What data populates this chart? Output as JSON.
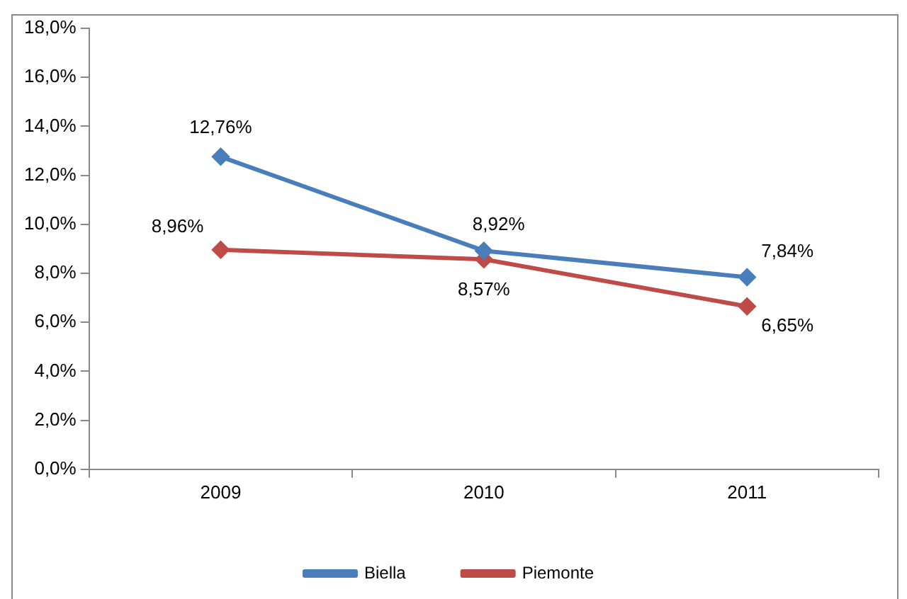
{
  "chart_data": {
    "type": "line",
    "categories": [
      "2009",
      "2010",
      "2011"
    ],
    "series": [
      {
        "name": "Biella",
        "color": "#4a7ebb",
        "values": [
          12.76,
          8.92,
          7.84
        ],
        "value_labels": [
          "12,76%",
          "8,92%",
          "7,84%"
        ]
      },
      {
        "name": "Piemonte",
        "color": "#be4b48",
        "values": [
          8.96,
          8.57,
          6.65
        ],
        "value_labels": [
          "8,96%",
          "8,57%",
          "6,65%"
        ]
      }
    ],
    "ylim": [
      0,
      18
    ],
    "yticks": [
      {
        "value": 0,
        "label": "0,0%"
      },
      {
        "value": 2,
        "label": "2,0%"
      },
      {
        "value": 4,
        "label": "4,0%"
      },
      {
        "value": 6,
        "label": "6,0%"
      },
      {
        "value": 8,
        "label": "8,0%"
      },
      {
        "value": 10,
        "label": "10,0%"
      },
      {
        "value": 12,
        "label": "12,0%"
      },
      {
        "value": 14,
        "label": "14,0%"
      },
      {
        "value": 16,
        "label": "16,0%"
      },
      {
        "value": 18,
        "label": "18,0%"
      }
    ],
    "grid": false,
    "legend": "bottom",
    "marker": "diamond",
    "line_style": "solid"
  }
}
